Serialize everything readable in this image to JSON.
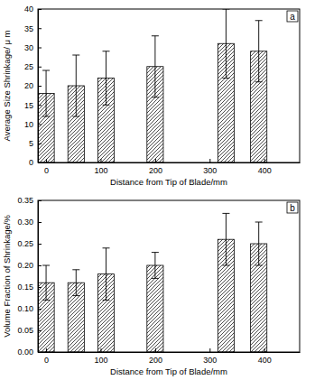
{
  "chart_data": [
    {
      "type": "bar",
      "title": "a",
      "x_label": "Distance from Tip of Blade/mm",
      "y_label": "Average Size Shrinkage/ μ m",
      "x": [
        0,
        55,
        110,
        200,
        330,
        390
      ],
      "values": [
        18,
        20,
        22,
        25,
        31,
        29
      ],
      "errors": [
        6,
        8,
        7,
        8,
        9,
        8
      ],
      "color": "#000000",
      "xlim": [
        -15,
        465
      ],
      "xticks": [
        0,
        100,
        200,
        300,
        400
      ],
      "ylim": [
        0,
        40
      ],
      "yticks": [
        0,
        5,
        10,
        15,
        20,
        25,
        30,
        35,
        40
      ],
      "grid": false
    },
    {
      "type": "bar",
      "title": "b",
      "x_label": "Distance from Tip of Blade/mm",
      "y_label": "Volume Fraction of Shrinkage/%",
      "x": [
        0,
        55,
        110,
        200,
        330,
        390
      ],
      "values": [
        0.16,
        0.16,
        0.18,
        0.2,
        0.26,
        0.25
      ],
      "errors": [
        0.04,
        0.03,
        0.06,
        0.03,
        0.06,
        0.05
      ],
      "color": "#000000",
      "xlim": [
        -15,
        465
      ],
      "xticks": [
        0,
        100,
        200,
        300,
        400
      ],
      "ylim": [
        0,
        0.35
      ],
      "yticks": [
        {
          "value": 0,
          "label": "0.00"
        },
        {
          "value": 0.05,
          "label": "0.05"
        },
        {
          "value": 0.1,
          "label": "0.10"
        },
        {
          "value": 0.15,
          "label": "0.15"
        },
        {
          "value": 0.2,
          "label": "0.20"
        },
        {
          "value": 0.25,
          "label": "0.25"
        },
        {
          "value": 0.3,
          "label": "0.30"
        },
        {
          "value": 0.35,
          "label": "0.35"
        }
      ],
      "grid": false
    }
  ]
}
